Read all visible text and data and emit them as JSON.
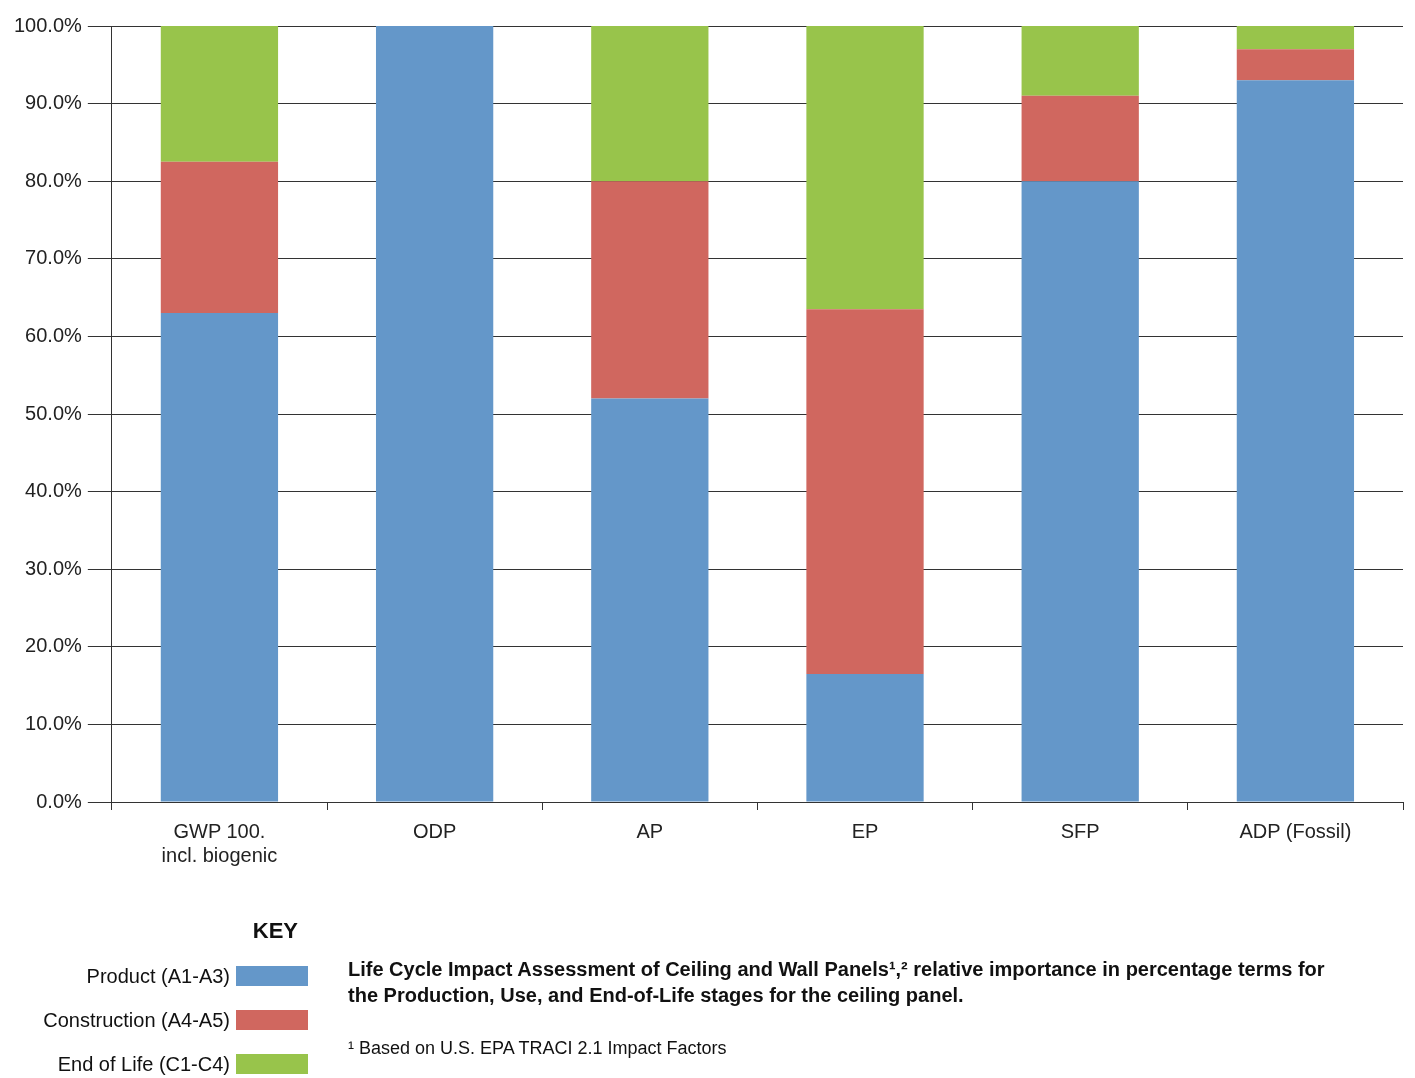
{
  "chart_data": {
    "type": "bar",
    "stacked": true,
    "categories": [
      "GWP 100.\nincl. biogenic",
      "ODP",
      "AP",
      "EP",
      "SFP",
      "ADP (Fossil)"
    ],
    "series": [
      {
        "name": "Product (A1-A3)",
        "color": "#6497c9",
        "values": [
          63,
          100,
          52,
          16.5,
          80,
          93
        ]
      },
      {
        "name": "Construction (A4-A5)",
        "color": "#d0675f",
        "values": [
          19.5,
          0,
          28,
          47,
          11,
          4
        ]
      },
      {
        "name": "End of Life (C1-C4)",
        "color": "#98c44b",
        "values": [
          17.5,
          0,
          20,
          36.5,
          9,
          3
        ]
      }
    ],
    "ylim": [
      0,
      100
    ],
    "yticks": [
      {
        "value": 0,
        "label": "0.0%"
      },
      {
        "value": 10,
        "label": "10.0%"
      },
      {
        "value": 20,
        "label": "20.0%"
      },
      {
        "value": 30,
        "label": "30.0%"
      },
      {
        "value": 40,
        "label": "40.0%"
      },
      {
        "value": 50,
        "label": "50.0%"
      },
      {
        "value": 60,
        "label": "60.0%"
      },
      {
        "value": 70,
        "label": "70.0%"
      },
      {
        "value": 80,
        "label": "80.0%"
      },
      {
        "value": 90,
        "label": "90.0%"
      },
      {
        "value": 100,
        "label": "100.0%"
      }
    ],
    "grid": "y",
    "legend": "bottom left",
    "legend_title": "KEY",
    "annotations": [
      "Life Cycle Impact Assessment of Ceiling and Wall Panels¹,² relative importance in percentage terms for the Production, Use, and End-of-Life stages for the ceiling panel.",
      "¹ Based on U.S. EPA TRACI 2.1 Impact Factors"
    ]
  }
}
